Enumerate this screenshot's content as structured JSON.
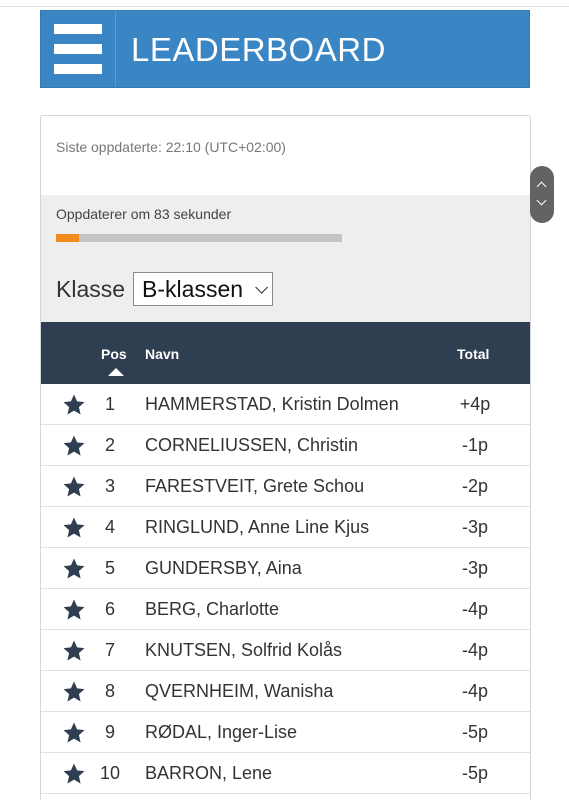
{
  "header": {
    "title": "LEADERBOARD",
    "menu_icon": "hamburger-menu-icon",
    "color": "#3a85c3"
  },
  "status": {
    "last_updated": "Siste oppdaterte: 22:10 (UTC+02:00)",
    "update_in": "Oppdaterer om 83 sekunder",
    "progress_fraction": 0.08,
    "progress_color": "#f28a1e"
  },
  "filter": {
    "label": "Klasse",
    "selected": "B-klassen"
  },
  "table": {
    "header_color": "#2f3e50",
    "columns": {
      "pos": "Pos",
      "name": "Navn",
      "total": "Total"
    },
    "sort": {
      "column": "pos",
      "direction": "ascending"
    },
    "rows": [
      {
        "pos": "1",
        "name": "HAMMERSTAD, Kristin Dolmen",
        "total": "+4p",
        "icon": "star-icon"
      },
      {
        "pos": "2",
        "name": "CORNELIUSSEN, Christin",
        "total": "-1p",
        "icon": "star-icon"
      },
      {
        "pos": "3",
        "name": "FARESTVEIT, Grete Schou",
        "total": "-2p",
        "icon": "star-icon"
      },
      {
        "pos": "4",
        "name": "RINGLUND, Anne Line Kjus",
        "total": "-3p",
        "icon": "star-icon"
      },
      {
        "pos": "5",
        "name": "GUNDERSBY, Aina",
        "total": "-3p",
        "icon": "star-icon"
      },
      {
        "pos": "6",
        "name": "BERG, Charlotte",
        "total": "-4p",
        "icon": "star-icon"
      },
      {
        "pos": "7",
        "name": "KNUTSEN, Solfrid Kolås",
        "total": "-4p",
        "icon": "star-icon"
      },
      {
        "pos": "8",
        "name": "QVERNHEIM, Wanisha",
        "total": "-4p",
        "icon": "star-icon"
      },
      {
        "pos": "9",
        "name": "RØDAL, Inger-Lise",
        "total": "-5p",
        "icon": "star-icon"
      },
      {
        "pos": "10",
        "name": "BARRON, Lene",
        "total": "-5p",
        "icon": "star-icon"
      }
    ]
  },
  "scroll_control": {
    "up_icon": "chevron-up-icon",
    "down_icon": "chevron-down-icon"
  }
}
